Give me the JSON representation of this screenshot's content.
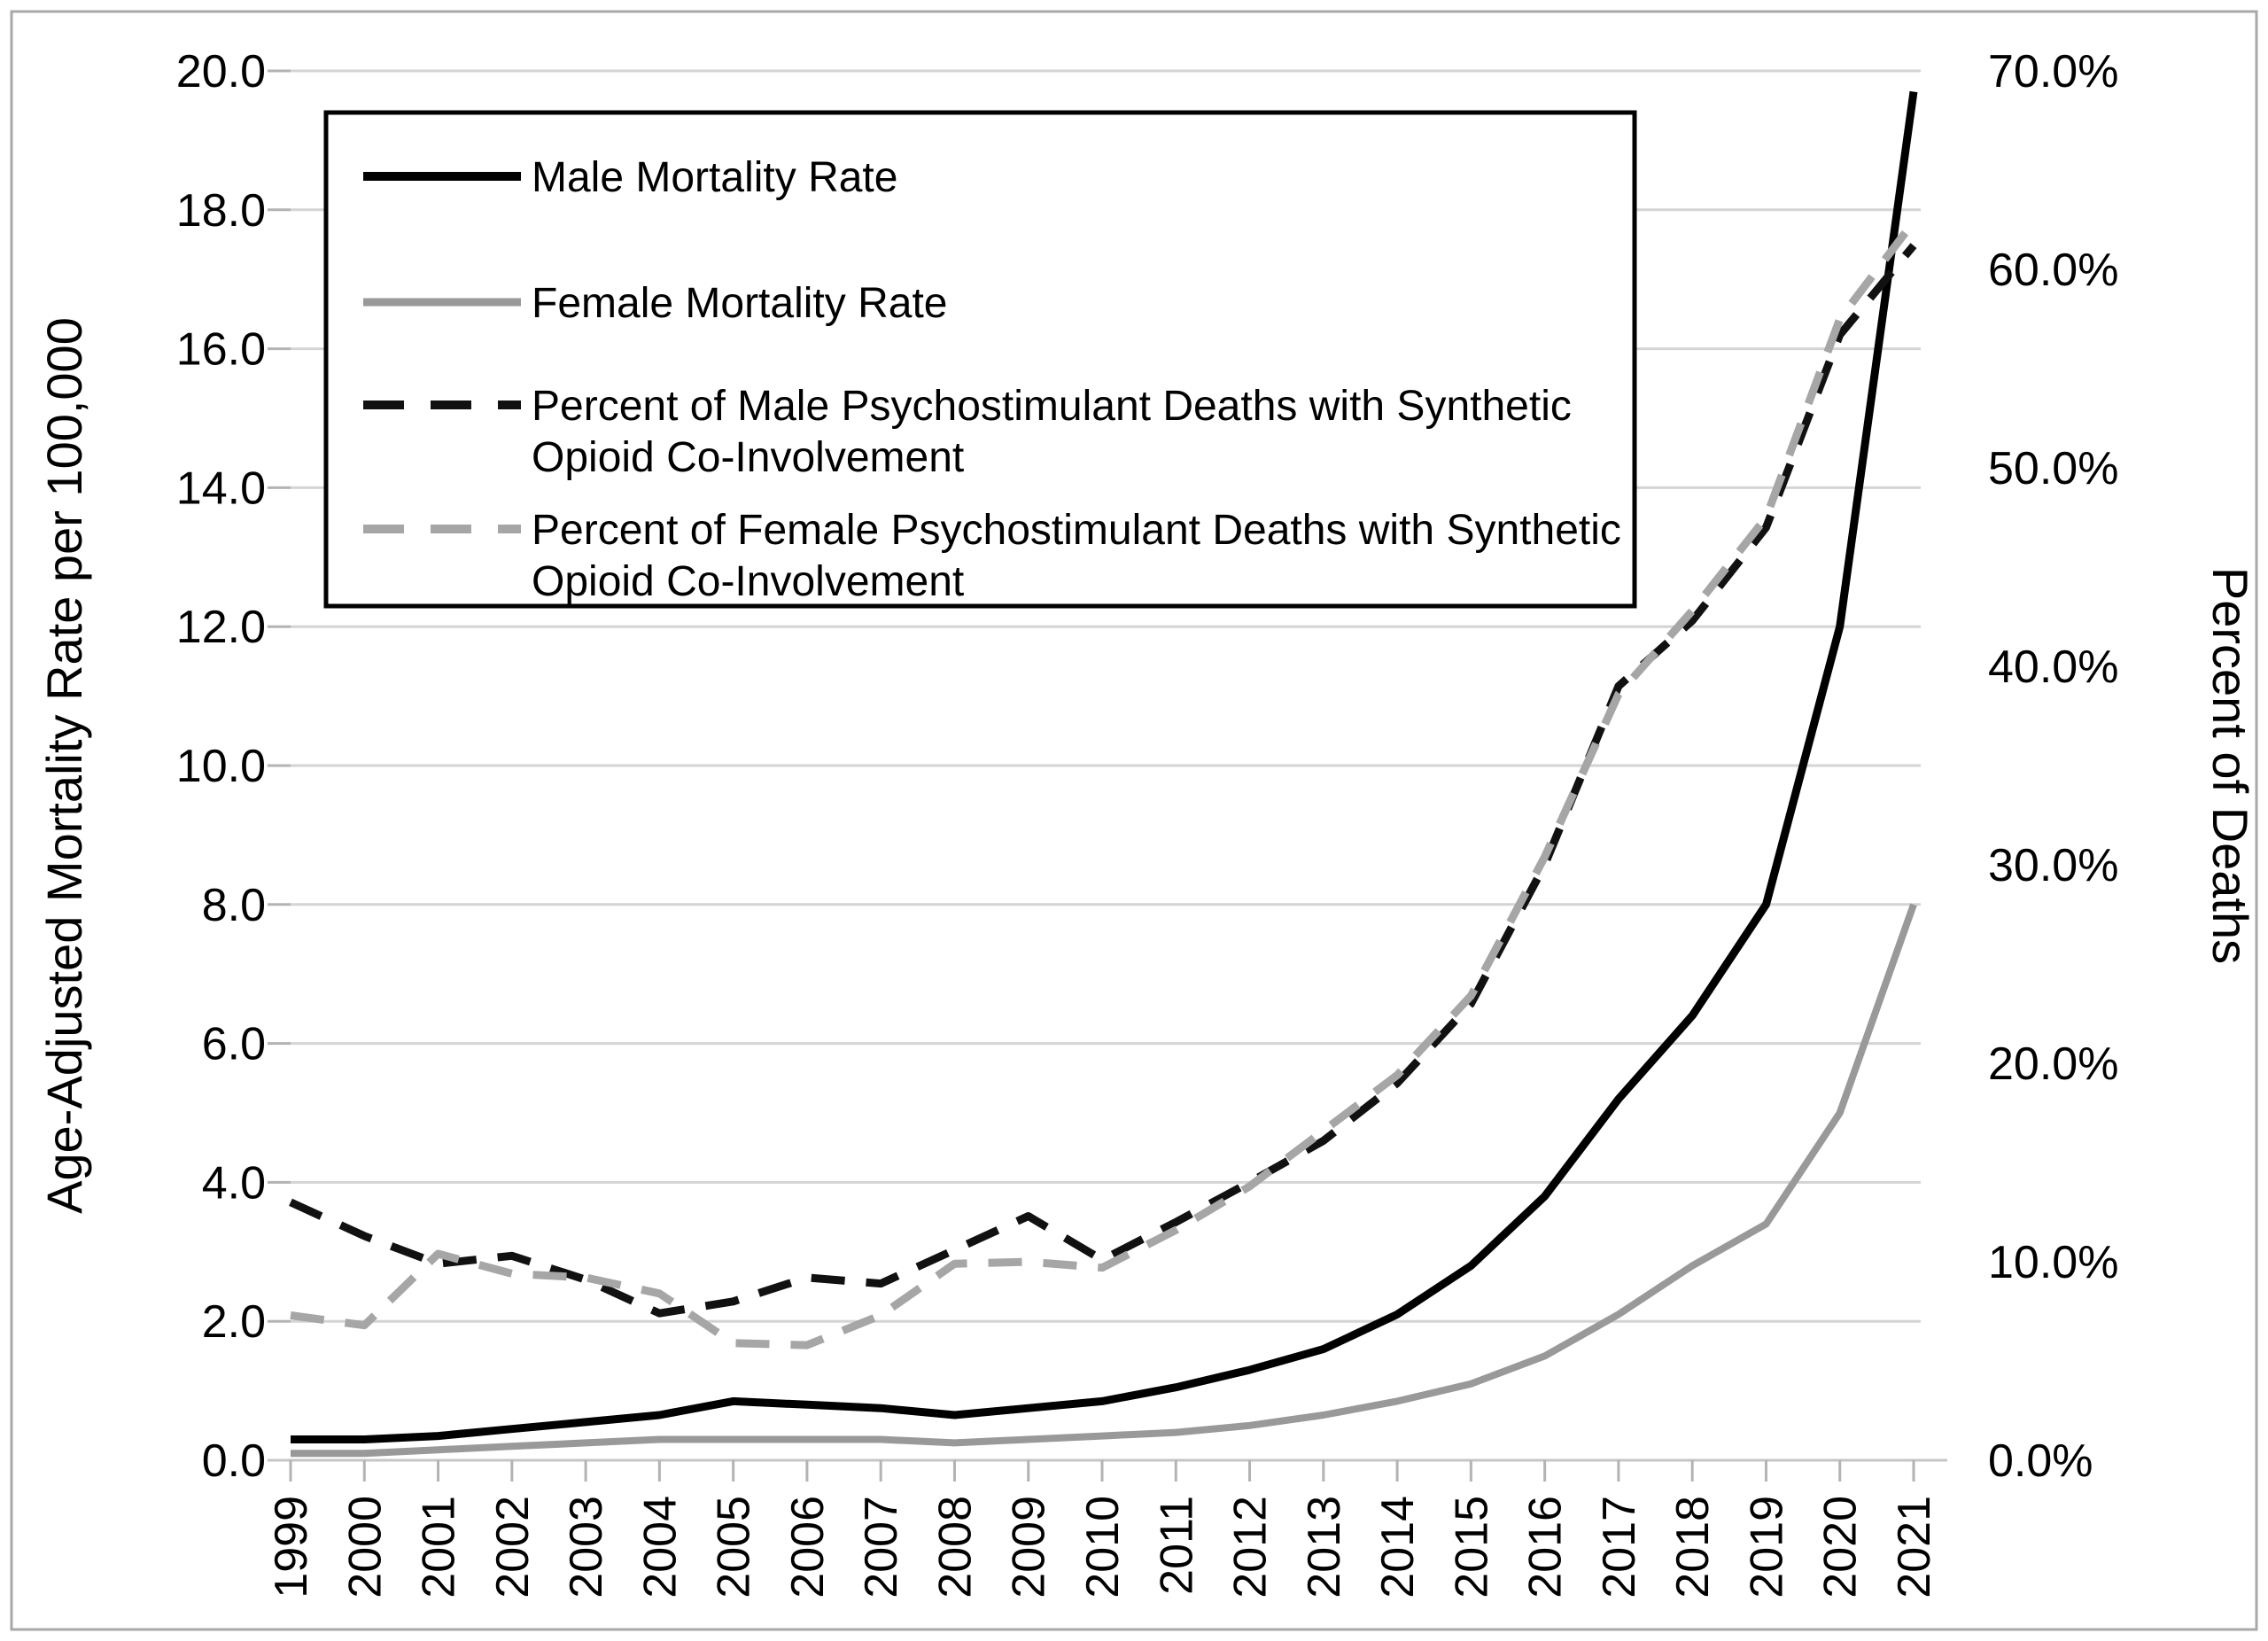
{
  "chart_data": {
    "type": "line",
    "title": "",
    "x_label": "",
    "x": [
      1999,
      2000,
      2001,
      2002,
      2003,
      2004,
      2005,
      2006,
      2007,
      2008,
      2009,
      2010,
      2011,
      2012,
      2013,
      2014,
      2015,
      2016,
      2017,
      2018,
      2019,
      2020,
      2021
    ],
    "series": [
      {
        "name": "Male Mortality Rate",
        "legend_lines": [
          "Male Mortality Rate"
        ],
        "axis": "left",
        "style": "solid",
        "color": "#000000",
        "width": 9,
        "values": [
          0.3,
          0.3,
          0.35,
          0.45,
          0.55,
          0.65,
          0.85,
          0.8,
          0.75,
          0.65,
          0.75,
          0.85,
          1.05,
          1.3,
          1.6,
          2.1,
          2.8,
          3.8,
          5.2,
          6.4,
          8.0,
          12.0,
          19.7
        ]
      },
      {
        "name": "Female Mortality Rate",
        "legend_lines": [
          "Female Mortality Rate"
        ],
        "axis": "left",
        "style": "solid",
        "color": "#999999",
        "width": 8,
        "values": [
          0.1,
          0.1,
          0.15,
          0.2,
          0.25,
          0.3,
          0.3,
          0.3,
          0.3,
          0.25,
          0.3,
          0.35,
          0.4,
          0.5,
          0.65,
          0.85,
          1.1,
          1.5,
          2.1,
          2.8,
          3.4,
          5.0,
          8.0
        ]
      },
      {
        "name": "Percent of Male Psychostimulant Deaths with Synthetic Opioid Co-Involvement",
        "legend_lines": [
          "Percent of Male Psychostimulant Deaths with Synthetic",
          "Opioid Co-Involvement"
        ],
        "axis": "right",
        "style": "dashed",
        "color": "#111111",
        "width": 9,
        "values": [
          13.0,
          11.3,
          9.9,
          10.3,
          9.1,
          7.4,
          8.0,
          9.2,
          8.9,
          10.6,
          12.3,
          10.1,
          12.0,
          14.0,
          16.1,
          19.0,
          23.0,
          30.0,
          39.0,
          42.3,
          47.0,
          56.7,
          61.2
        ]
      },
      {
        "name": "Percent of Female Psychostimulant Deaths with Synthetic Opioid Co-Involvement",
        "legend_lines": [
          "Percent of Female Psychostimulant Deaths with Synthetic",
          "Opioid Co-Involvement"
        ],
        "axis": "right",
        "style": "dashed",
        "color": "#a6a6a6",
        "width": 9,
        "values": [
          7.3,
          6.8,
          10.4,
          9.4,
          9.2,
          8.4,
          5.9,
          5.8,
          7.3,
          9.9,
          10.0,
          9.7,
          11.6,
          13.8,
          16.6,
          19.4,
          23.4,
          30.4,
          38.6,
          42.8,
          47.5,
          57.5,
          62.4
        ]
      }
    ],
    "left_axis": {
      "label": "Age-Adjusted Mortality Rate per 100,000",
      "min": 0,
      "max": 20,
      "step": 2,
      "tick_suffix": ""
    },
    "right_axis": {
      "label": "Percent of Deaths",
      "min": 0,
      "max": 70,
      "step": 10,
      "tick_suffix": "%"
    },
    "grid": true,
    "legend_position": "top-left",
    "colors": {
      "background": "#ffffff",
      "frame_border": "#a8a8a8",
      "gridline": "#d4d4d4",
      "axis_line": "#c6c6c6",
      "tick": "#b3b3b3",
      "text": "#000000",
      "legend_border": "#000000",
      "legend_fill": "#ffffff"
    }
  }
}
